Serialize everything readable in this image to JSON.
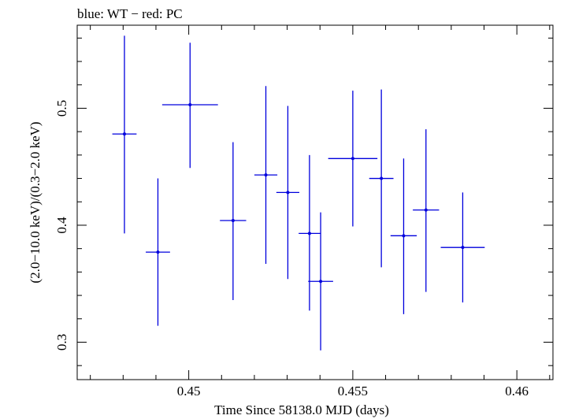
{
  "chart_data": {
    "type": "scatter",
    "title": "blue: WT − red: PC",
    "xlabel": "Time Since 58138.0 MJD (days)",
    "ylabel": "(2.0−10.0 keV)/(0.3−2.0 keV)",
    "xlim": [
      0.4466,
      0.4611
    ],
    "ylim": [
      0.268,
      0.571
    ],
    "x_ticks": [
      0.45,
      0.455,
      0.46
    ],
    "x_tick_labels": [
      "0.45",
      "0.455",
      "0.46"
    ],
    "y_ticks": [
      0.3,
      0.4,
      0.5
    ],
    "y_tick_labels": [
      "0.3",
      "0.4",
      "0.5"
    ],
    "grid": false,
    "series": [
      {
        "color": "#0000dd",
        "points": [
          {
            "x": 0.44804,
            "xerr": 0.00037,
            "y": 0.478,
            "ylo": 0.393,
            "yhi": 0.562
          },
          {
            "x": 0.44906,
            "xerr": 0.00037,
            "y": 0.377,
            "ylo": 0.314,
            "yhi": 0.44
          },
          {
            "x": 0.45004,
            "xerr": 0.00085,
            "y": 0.503,
            "ylo": 0.449,
            "yhi": 0.556
          },
          {
            "x": 0.45135,
            "xerr": 0.0004,
            "y": 0.404,
            "ylo": 0.336,
            "yhi": 0.471
          },
          {
            "x": 0.45235,
            "xerr": 0.00035,
            "y": 0.443,
            "ylo": 0.367,
            "yhi": 0.519
          },
          {
            "x": 0.45302,
            "xerr": 0.00035,
            "y": 0.428,
            "ylo": 0.354,
            "yhi": 0.502
          },
          {
            "x": 0.45368,
            "xerr": 0.00033,
            "y": 0.393,
            "ylo": 0.327,
            "yhi": 0.46
          },
          {
            "x": 0.45402,
            "xerr": 0.00038,
            "y": 0.352,
            "ylo": 0.293,
            "yhi": 0.411
          },
          {
            "x": 0.455,
            "xerr": 0.00075,
            "y": 0.457,
            "ylo": 0.399,
            "yhi": 0.515
          },
          {
            "x": 0.45587,
            "xerr": 0.00037,
            "y": 0.44,
            "ylo": 0.364,
            "yhi": 0.516
          },
          {
            "x": 0.45655,
            "xerr": 0.0004,
            "y": 0.391,
            "ylo": 0.324,
            "yhi": 0.457
          },
          {
            "x": 0.45723,
            "xerr": 0.0004,
            "y": 0.413,
            "ylo": 0.343,
            "yhi": 0.482
          },
          {
            "x": 0.45835,
            "xerr": 0.00067,
            "y": 0.381,
            "ylo": 0.334,
            "yhi": 0.428
          }
        ]
      }
    ]
  }
}
